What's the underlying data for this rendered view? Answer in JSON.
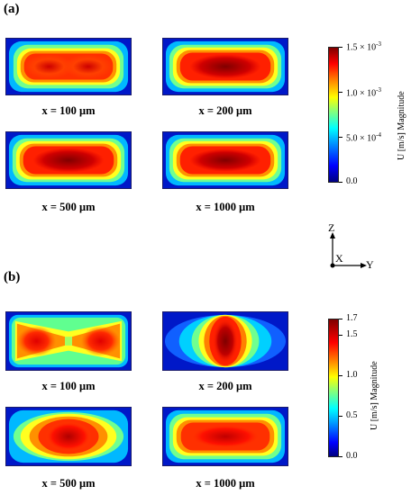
{
  "panels": [
    {
      "label": "(a)",
      "plots": [
        {
          "caption": "x = 100 μm"
        },
        {
          "caption": "x = 200 μm"
        },
        {
          "caption": "x = 500 μm"
        },
        {
          "caption": "x = 1000 μm"
        }
      ],
      "colorbar": {
        "title": "U [m/s] Magnitude",
        "ticks": [
          "1.5 × 10",
          "1.0 × 10",
          "5.0 × 10",
          "0.0"
        ],
        "exponents": [
          "-3",
          "-3",
          "-4",
          ""
        ]
      }
    },
    {
      "label": "(b)",
      "plots": [
        {
          "caption": "x = 100 μm"
        },
        {
          "caption": "x = 200 μm"
        },
        {
          "caption": "x = 500 μm"
        },
        {
          "caption": "x = 1000 μm"
        }
      ],
      "colorbar": {
        "title": "U [m/s] Magnitude",
        "ticks": [
          "1.7",
          "1.5",
          "1.0",
          "0.5",
          "0.0"
        ]
      }
    }
  ],
  "axes": {
    "z": "Z",
    "x": "X",
    "y": "Y"
  },
  "colors": {
    "colormap": [
      "#00007f",
      "#0000ff",
      "#00a0ff",
      "#00ffff",
      "#80ff80",
      "#ffff00",
      "#ff8000",
      "#ff0000",
      "#7f0000"
    ]
  }
}
